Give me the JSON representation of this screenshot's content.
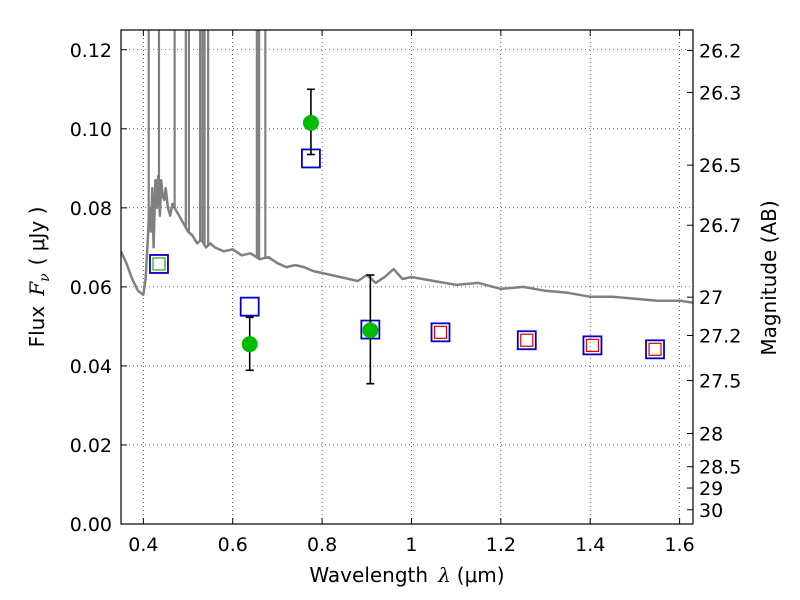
{
  "chart_data": {
    "type": "scatter",
    "title": "",
    "xlabel_prefix": "Wavelength",
    "xlabel_symbol": "λ",
    "xlabel_unit": "(μm)",
    "ylabel_prefix": "Flux",
    "ylabel_symbol": "F",
    "ylabel_sub": "ν",
    "ylabel_unit": "( μJy )",
    "y2label": "Magnitude (AB)",
    "xlim": [
      0.35,
      1.63
    ],
    "ylim": [
      0.0,
      0.125
    ],
    "grid": true,
    "legend": "none",
    "x_ticks": [
      0.4,
      0.6,
      0.8,
      1.0,
      1.2,
      1.4,
      1.6
    ],
    "x_tick_labels": [
      "0.4",
      "0.6",
      "0.8",
      "1",
      "1.2",
      "1.4",
      "1.6"
    ],
    "y_ticks": [
      0.0,
      0.02,
      0.04,
      0.06,
      0.08,
      0.1,
      0.12
    ],
    "y_tick_labels": [
      "0.00",
      "0.02",
      "0.04",
      "0.06",
      "0.08",
      "0.10",
      "0.12"
    ],
    "y2_ticks": [
      {
        "label": "26.2",
        "flux": 0.1198
      },
      {
        "label": "26.3",
        "flux": 0.1092
      },
      {
        "label": "26.5",
        "flux": 0.0908
      },
      {
        "label": "26.7",
        "flux": 0.0756
      },
      {
        "label": "27",
        "flux": 0.0574
      },
      {
        "label": "27.2",
        "flux": 0.0477
      },
      {
        "label": "27.5",
        "flux": 0.0363
      },
      {
        "label": "28",
        "flux": 0.0229
      },
      {
        "label": "28.5",
        "flux": 0.0145
      },
      {
        "label": "29",
        "flux": 0.0091
      },
      {
        "label": "30",
        "flux": 0.0036
      }
    ],
    "colors": {
      "template": "#808080",
      "model_box": "#0000cc",
      "green_marker": "#00bb00",
      "red_box": "#dd0000",
      "green_box": "#22aa22",
      "errorbar": "#000000"
    },
    "series": [
      {
        "marker": "template-line",
        "x": [
          0.35,
          0.362,
          0.375,
          0.388,
          0.4,
          0.405,
          0.41,
          0.413,
          0.417,
          0.42,
          0.423,
          0.427,
          0.43,
          0.433,
          0.437,
          0.44,
          0.443,
          0.447,
          0.45,
          0.455,
          0.46,
          0.465,
          0.47,
          0.48,
          0.49,
          0.5,
          0.51,
          0.52,
          0.53,
          0.54,
          0.55,
          0.56,
          0.58,
          0.6,
          0.62,
          0.64,
          0.66,
          0.68,
          0.7,
          0.72,
          0.74,
          0.76,
          0.78,
          0.8,
          0.82,
          0.84,
          0.86,
          0.88,
          0.9,
          0.92,
          0.94,
          0.96,
          0.98,
          1.0,
          1.05,
          1.1,
          1.15,
          1.2,
          1.25,
          1.3,
          1.35,
          1.4,
          1.45,
          1.5,
          1.55,
          1.6,
          1.63
        ],
        "y": [
          0.069,
          0.066,
          0.062,
          0.059,
          0.058,
          0.062,
          0.072,
          0.08,
          0.074,
          0.085,
          0.07,
          0.087,
          0.08,
          0.088,
          0.078,
          0.087,
          0.083,
          0.082,
          0.085,
          0.08,
          0.078,
          0.081,
          0.08,
          0.078,
          0.076,
          0.074,
          0.073,
          0.071,
          0.072,
          0.07,
          0.071,
          0.07,
          0.069,
          0.0695,
          0.068,
          0.0685,
          0.067,
          0.0675,
          0.066,
          0.065,
          0.0655,
          0.065,
          0.064,
          0.0635,
          0.063,
          0.0625,
          0.062,
          0.0615,
          0.063,
          0.061,
          0.0625,
          0.0645,
          0.062,
          0.0625,
          0.0615,
          0.0605,
          0.061,
          0.0595,
          0.06,
          0.059,
          0.0585,
          0.0575,
          0.0575,
          0.057,
          0.0565,
          0.0565,
          0.056
        ]
      },
      {
        "marker": "template-emission-lines",
        "x": [
          0.412,
          0.435,
          0.47,
          0.495,
          0.502,
          0.527,
          0.532,
          0.537,
          0.545,
          0.654,
          0.659,
          0.673
        ],
        "y": [
          0.125,
          0.125,
          0.125,
          0.125,
          0.125,
          0.125,
          0.125,
          0.125,
          0.125,
          0.125,
          0.125,
          0.125
        ]
      },
      {
        "marker": "blue-open-square",
        "x": [
          0.435,
          0.638,
          0.775,
          0.908,
          1.065,
          1.258,
          1.405,
          1.545
        ],
        "y": [
          0.0658,
          0.055,
          0.0925,
          0.0492,
          0.0485,
          0.0465,
          0.0452,
          0.0442
        ]
      },
      {
        "marker": "green-filled-circle",
        "x": [
          0.638,
          0.775,
          0.908
        ],
        "y": [
          0.0455,
          0.1015,
          0.049
        ],
        "yerr_low": [
          0.0389,
          0.0935,
          0.0355
        ],
        "yerr_high": [
          0.0523,
          0.11,
          0.063
        ]
      },
      {
        "marker": "red-open-square",
        "x": [
          1.065,
          1.258,
          1.405,
          1.545
        ],
        "y": [
          0.0485,
          0.0465,
          0.0452,
          0.0442
        ]
      },
      {
        "marker": "green-open-square",
        "x": [
          0.435
        ],
        "y": [
          0.0658
        ]
      }
    ]
  }
}
